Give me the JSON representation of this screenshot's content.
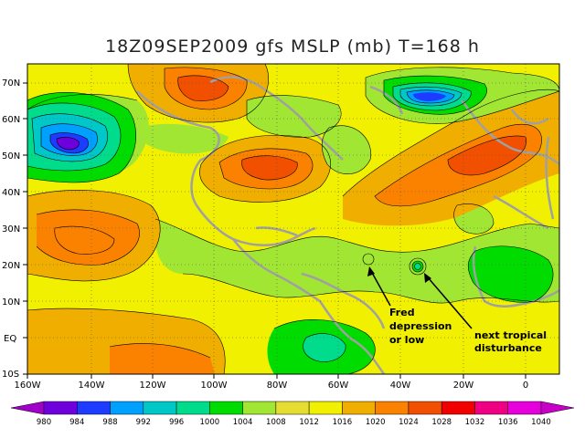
{
  "title": "18Z09SEP2009 gfs MSLP (mb) T=168 h",
  "lat_labels": [
    "70N",
    "60N",
    "50N",
    "40N",
    "30N",
    "20N",
    "10N",
    "EQ",
    "10S"
  ],
  "lon_labels": [
    "160W",
    "140W",
    "120W",
    "100W",
    "80W",
    "60W",
    "40W",
    "20W",
    "0"
  ],
  "annotations": {
    "fred": [
      "Fred",
      "depression",
      "or low"
    ],
    "disturbance": [
      "next tropical",
      "disturbance"
    ]
  },
  "colorbar": {
    "labels": [
      "980",
      "984",
      "988",
      "992",
      "996",
      "1000",
      "1004",
      "1008",
      "1012",
      "1016",
      "1020",
      "1024",
      "1028",
      "1032",
      "1036",
      "1040"
    ],
    "colors": [
      "#a000c8",
      "#6e00dc",
      "#1e3cff",
      "#00a0ff",
      "#00c8c8",
      "#00dc8c",
      "#00dc00",
      "#a0e632",
      "#e6dc32",
      "#f0f000",
      "#f0af00",
      "#fa8200",
      "#f05000",
      "#f00000",
      "#f00082",
      "#e600dc",
      "#c800c8"
    ]
  },
  "colors": {
    "land_outline": "#a0a0a0",
    "contour": "#000000"
  }
}
